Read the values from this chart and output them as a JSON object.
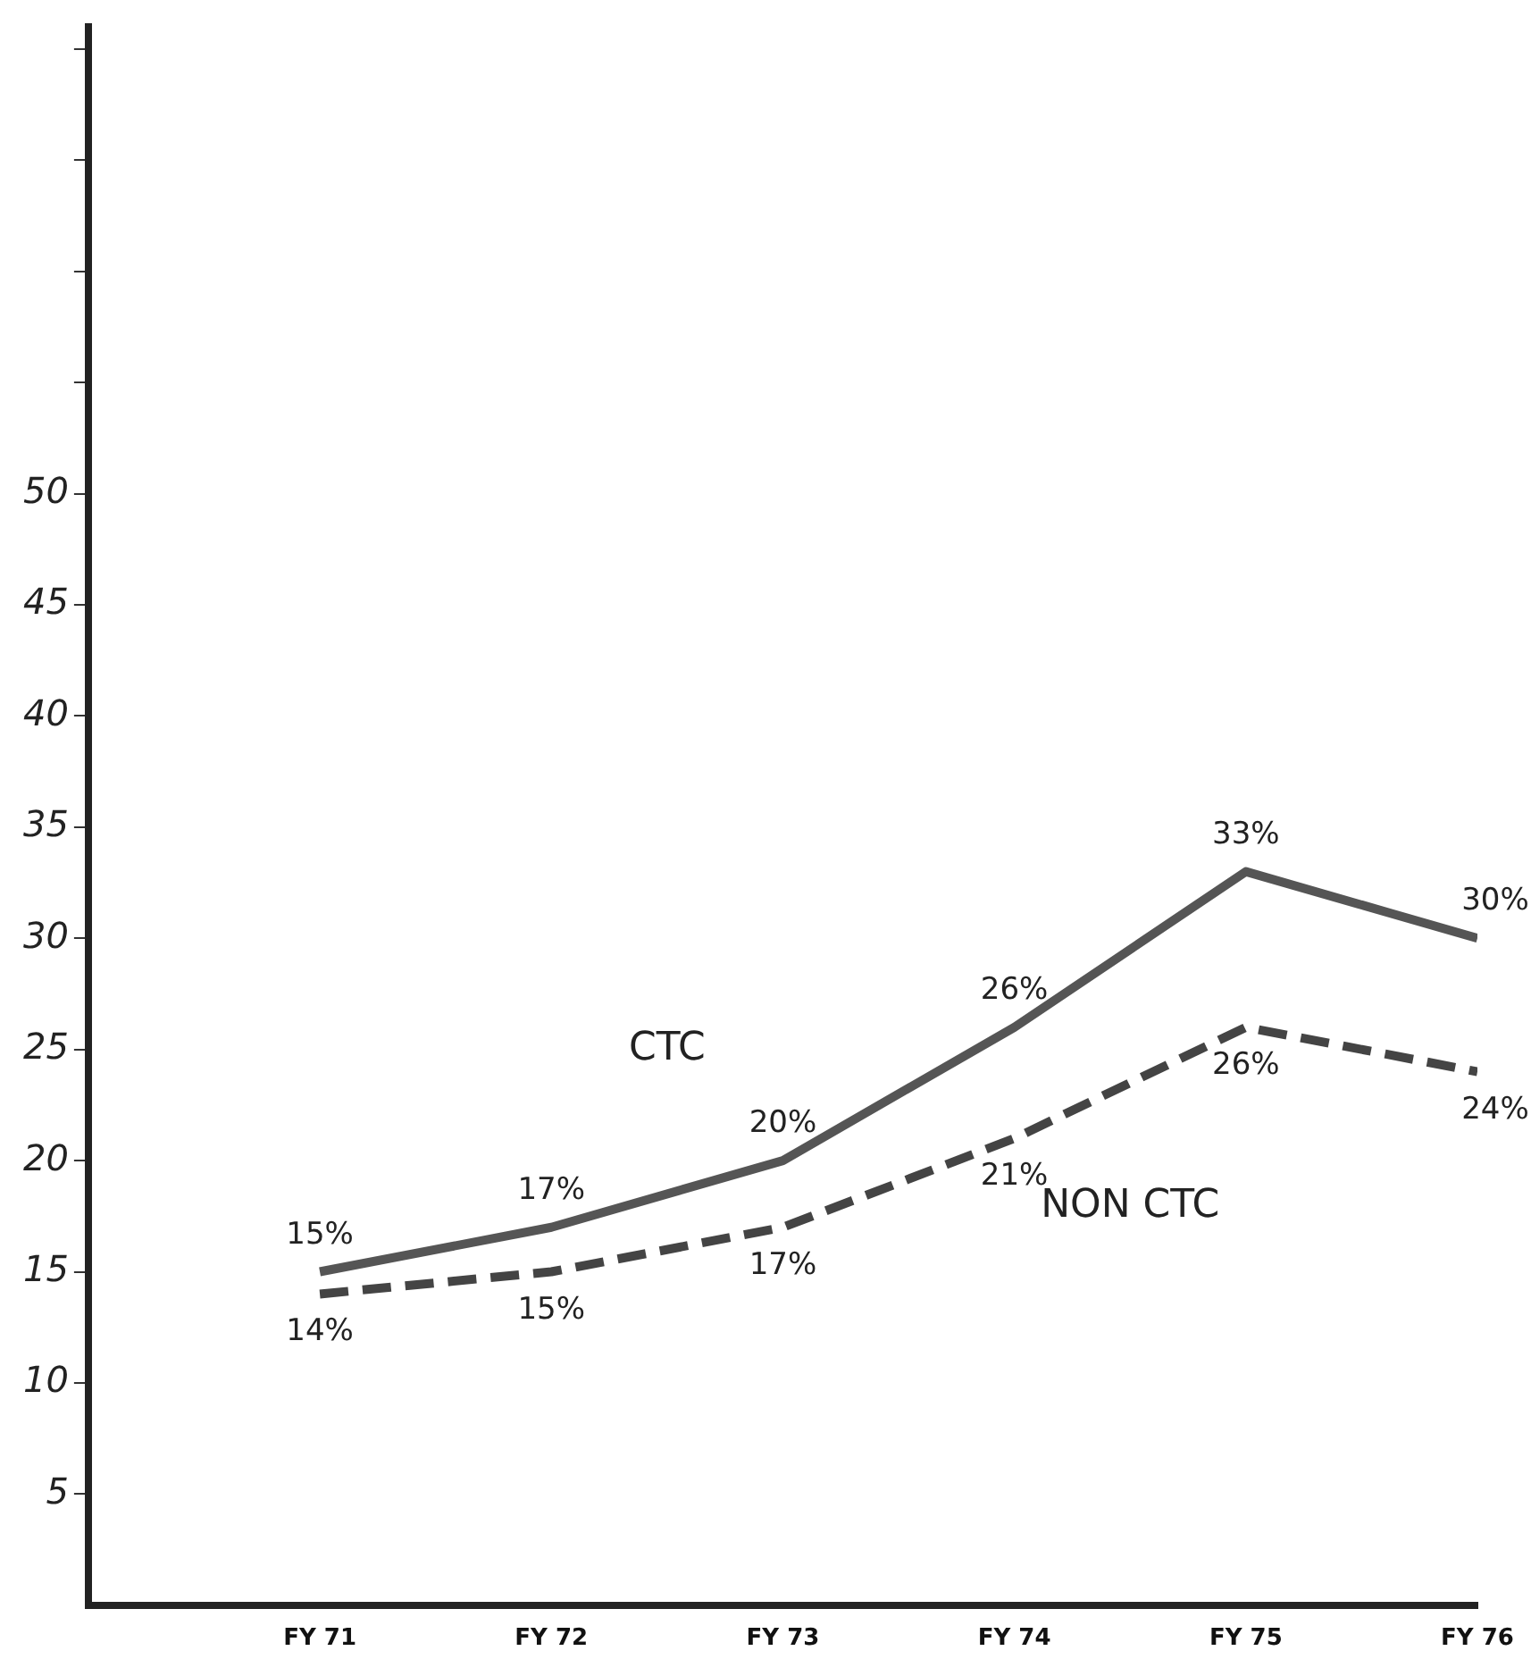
{
  "chart_data": {
    "type": "line",
    "categories": [
      "FY 71",
      "FY 72",
      "FY 73",
      "FY 74",
      "FY 75",
      "FY 76"
    ],
    "series": [
      {
        "name": "CTC",
        "color": "#555555",
        "line_style": "solid",
        "values": [
          15,
          17,
          20,
          26,
          33,
          30
        ],
        "value_labels": [
          "15%",
          "17%",
          "20%",
          "26%",
          "33%",
          "30%"
        ]
      },
      {
        "name": "NON CTC",
        "color": "#444444",
        "line_style": "dashed",
        "values": [
          14,
          15,
          17,
          21,
          26,
          24
        ],
        "value_labels": [
          "14%",
          "15%",
          "17%",
          "21%",
          "26%",
          "24%"
        ]
      }
    ],
    "ylim": [
      0,
      71
    ],
    "yticks": [
      {
        "value": 5,
        "label": "5"
      },
      10,
      15,
      20,
      25,
      30,
      35,
      40,
      45,
      50,
      {
        "value": 55,
        "label": null
      },
      {
        "value": 60,
        "label": null
      },
      {
        "value": 65,
        "label": null
      },
      {
        "value": 70,
        "label": null
      }
    ],
    "grid": false,
    "legend": false,
    "marker": "none"
  }
}
